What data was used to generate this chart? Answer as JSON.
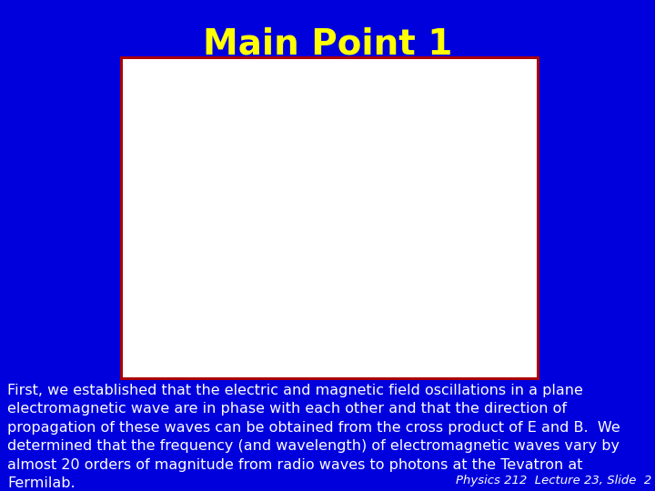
{
  "title": "Main Point 1",
  "title_color": "#FFFF00",
  "background_color": "#0000DD",
  "body_text": "First, we established that the electric and magnetic field oscillations in a plane\nelectromagnetic wave are in phase with each other and that the direction of\npropagation of these waves can be obtained from the cross product of E and B.  We\ndetermined that the frequency (and wavelength) of electromagnetic waves vary by\nalmost 20 orders of magnitude from radio waves to photons at the Tevatron at\nFermilab.",
  "body_text_color": "#FFFFFF",
  "footnote": "Physics 212  Lecture 23, Slide  2",
  "footnote_color": "#FFFFFF",
  "image_border_color": "#AA0000",
  "image_fill_color": "#FFFFFF",
  "title_fontsize": 28,
  "body_fontsize": 11.5,
  "footnote_fontsize": 9.5
}
